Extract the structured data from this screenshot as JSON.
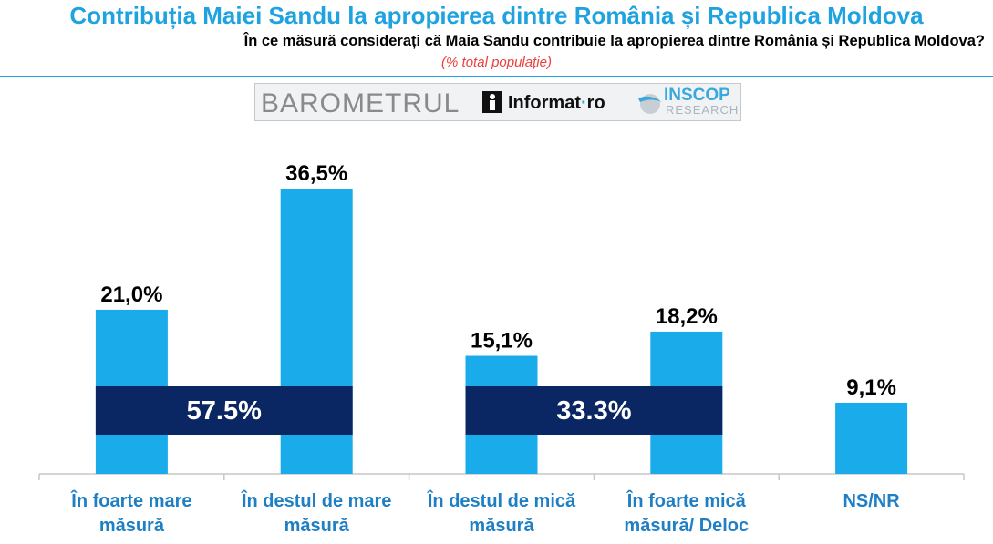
{
  "header": {
    "title": "Contribuția Maiei Sandu la apropierea dintre România și Republica Moldova",
    "question": "În ce măsură considerați că Maia Sandu contribuie la apropierea dintre România și Republica Moldova?",
    "note": "(% total populație)"
  },
  "logo": {
    "barometrul": "BAROMETRUL",
    "informat_main": "Informat",
    "informat_dot": "·",
    "informat_tld": "ro",
    "inscop": "INSCOP",
    "research": "RESEARCH"
  },
  "colors": {
    "bar": "#1aabeb",
    "summary_band": "#0b2763",
    "title": "#1fa3e0",
    "note": "#e8413c",
    "category_label": "#1f7fc4"
  },
  "chart_data": {
    "type": "bar",
    "categories": [
      [
        "În foarte mare",
        "măsură"
      ],
      [
        "În destul de mare",
        "măsură"
      ],
      [
        "În destul de mică",
        "măsură"
      ],
      [
        "În foarte mică",
        "măsură/ Deloc"
      ],
      [
        "NS/NR"
      ]
    ],
    "values": [
      21.0,
      36.5,
      15.1,
      18.2,
      9.1
    ],
    "value_labels": [
      "21,0%",
      "36,5%",
      "15,1%",
      "18,2%",
      "9,1%"
    ],
    "ylim": [
      0,
      40
    ],
    "grid": false,
    "summaries": [
      {
        "label": "57.5%",
        "categories": [
          0,
          1
        ]
      },
      {
        "label": "33.3%",
        "categories": [
          2,
          3
        ]
      }
    ]
  }
}
